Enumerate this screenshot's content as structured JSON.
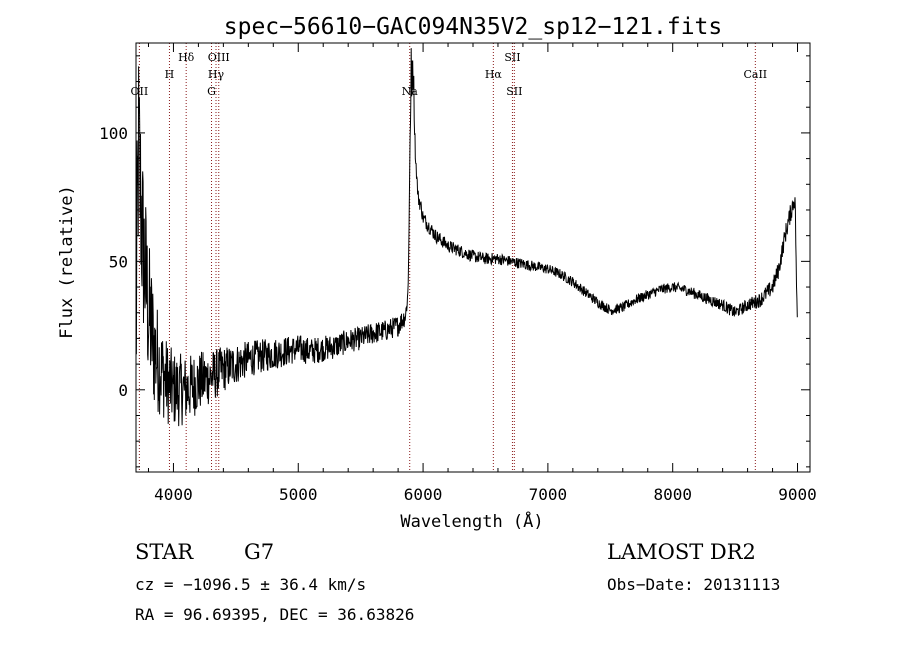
{
  "chart_data": {
    "type": "line",
    "title": "spec−56610−GAC094N35V2_sp12−121.fits",
    "xlabel": "Wavelength (Å)",
    "ylabel": "Flux (relative)",
    "xlim": [
      3700,
      9100
    ],
    "ylim": [
      -32,
      135
    ],
    "x_ticks": [
      4000,
      5000,
      6000,
      7000,
      8000,
      9000
    ],
    "x_tick_labels": [
      "4000",
      "5000",
      "6000",
      "7000",
      "8000",
      "9000"
    ],
    "y_ticks": [
      0,
      50,
      100
    ],
    "y_tick_labels": [
      "0",
      "50",
      "100"
    ],
    "grid": false,
    "line_color": "#000000",
    "marker_color": "#8b1a1a",
    "lines": [
      {
        "label": "OII",
        "x": 3727,
        "row": 3
      },
      {
        "label": "H",
        "x": 3968,
        "row": 1
      },
      {
        "label": "Hδ",
        "x": 4102,
        "row": 0
      },
      {
        "label": "G",
        "x": 4305,
        "row": 3
      },
      {
        "label": "Hγ",
        "x": 4341,
        "row": 2
      },
      {
        "label": "OIII",
        "x": 4363,
        "row": 0
      },
      {
        "label": "Na",
        "x": 5893,
        "row": 3
      },
      {
        "label": "Hα",
        "x": 6563,
        "row": 1
      },
      {
        "label": "SII",
        "x": 6716,
        "row": 0
      },
      {
        "label": "SII",
        "x": 6731,
        "row": 3
      },
      {
        "label": "CaII",
        "x": 8662,
        "row": 1
      }
    ],
    "anchors": [
      [
        3700,
        20
      ],
      [
        3720,
        95
      ],
      [
        3750,
        60
      ],
      [
        3800,
        30
      ],
      [
        3850,
        15
      ],
      [
        3900,
        8
      ],
      [
        3950,
        3
      ],
      [
        4000,
        0
      ],
      [
        4100,
        0
      ],
      [
        4200,
        3
      ],
      [
        4300,
        5
      ],
      [
        4400,
        8
      ],
      [
        4500,
        10
      ],
      [
        4600,
        12
      ],
      [
        4700,
        13
      ],
      [
        4800,
        14
      ],
      [
        4900,
        15
      ],
      [
        5000,
        16
      ],
      [
        5100,
        15
      ],
      [
        5200,
        16
      ],
      [
        5300,
        17
      ],
      [
        5400,
        19
      ],
      [
        5500,
        20
      ],
      [
        5600,
        22
      ],
      [
        5700,
        23
      ],
      [
        5800,
        25
      ],
      [
        5860,
        29
      ],
      [
        5880,
        38
      ],
      [
        5900,
        110
      ],
      [
        5920,
        120
      ],
      [
        5940,
        90
      ],
      [
        5960,
        75
      ],
      [
        5980,
        72
      ],
      [
        6000,
        67
      ],
      [
        6100,
        60
      ],
      [
        6200,
        56
      ],
      [
        6300,
        54
      ],
      [
        6400,
        52
      ],
      [
        6500,
        51
      ],
      [
        6600,
        51
      ],
      [
        6700,
        50
      ],
      [
        6800,
        49
      ],
      [
        6900,
        48
      ],
      [
        7000,
        47
      ],
      [
        7100,
        45
      ],
      [
        7200,
        42
      ],
      [
        7300,
        38
      ],
      [
        7400,
        34
      ],
      [
        7500,
        31
      ],
      [
        7600,
        32
      ],
      [
        7700,
        35
      ],
      [
        7800,
        37
      ],
      [
        7900,
        39
      ],
      [
        8000,
        40
      ],
      [
        8100,
        39
      ],
      [
        8200,
        37
      ],
      [
        8300,
        35
      ],
      [
        8400,
        33
      ],
      [
        8500,
        30
      ],
      [
        8600,
        33
      ],
      [
        8700,
        35
      ],
      [
        8800,
        40
      ],
      [
        8850,
        47
      ],
      [
        8900,
        60
      ],
      [
        8950,
        70
      ],
      [
        8980,
        75
      ],
      [
        9000,
        20
      ]
    ],
    "noise": [
      [
        3700,
        45
      ],
      [
        3800,
        30
      ],
      [
        3900,
        18
      ],
      [
        4000,
        15
      ],
      [
        4200,
        12
      ],
      [
        4400,
        9
      ],
      [
        4600,
        7
      ],
      [
        5000,
        5.5
      ],
      [
        5500,
        4.5
      ],
      [
        5850,
        4
      ],
      [
        5950,
        3
      ],
      [
        6200,
        2.5
      ],
      [
        7000,
        2
      ],
      [
        8000,
        2
      ],
      [
        8600,
        2.5
      ],
      [
        9000,
        4
      ]
    ],
    "spikes": [
      [
        5905,
        133
      ],
      [
        5915,
        128
      ],
      [
        5925,
        122
      ]
    ],
    "sample_step": 3
  },
  "footer": {
    "object_class": "STAR",
    "subclass": "G7",
    "survey": "LAMOST DR2",
    "redshift": "cz = −1096.5 ± 36.4 km/s",
    "obs_date": "Obs−Date: 20131113",
    "coords": "RA =  96.69395, DEC =  36.63826"
  }
}
